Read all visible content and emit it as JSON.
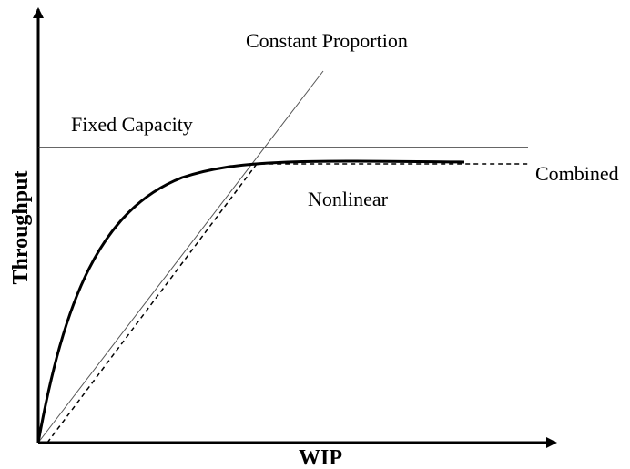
{
  "axes": {
    "x_label": "WIP",
    "y_label": "Throughput"
  },
  "curves": {
    "constant": "Constant Proportion",
    "fixed": "Fixed Capacity",
    "combined": "Combined",
    "nonlinear": "Nonlinear"
  }
}
